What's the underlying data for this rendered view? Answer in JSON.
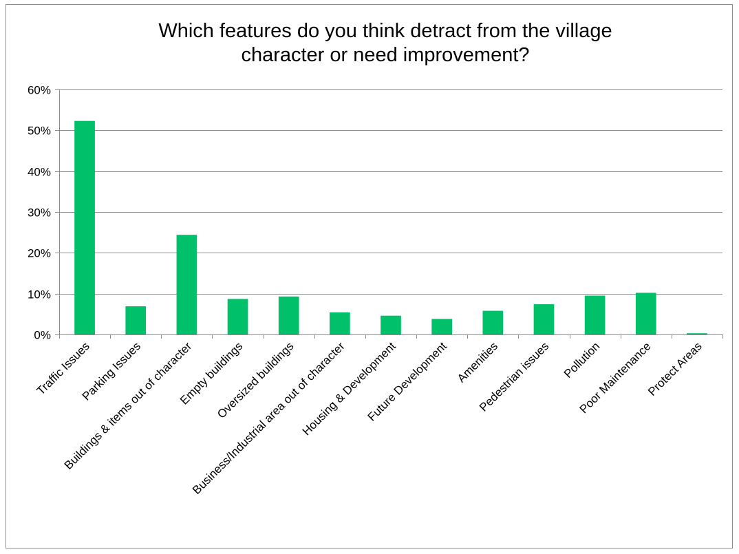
{
  "chart_data": {
    "type": "bar",
    "title": "Which features do you think detract from the village\ncharacter or need improvement?",
    "xlabel": "",
    "ylabel": "",
    "ylim": [
      0,
      60
    ],
    "yticks": [
      "0%",
      "10%",
      "20%",
      "30%",
      "40%",
      "50%",
      "60%"
    ],
    "grid": true,
    "legend": "none",
    "bar_color": "#00c06a",
    "categories": [
      "Traffic Issues",
      "Parking Issues",
      "Buildings & items out of character",
      "Empty buildings",
      "Oversized buildings",
      "Business/Industrial area out of character",
      "Housing & Development",
      "Future Development",
      "Amenities",
      "Pedestrian issues",
      "Pollution",
      "Poor Maintenance",
      "Protect Areas"
    ],
    "values": [
      52.3,
      6.9,
      24.4,
      8.7,
      9.3,
      5.4,
      4.6,
      3.8,
      5.8,
      7.4,
      9.5,
      10.2,
      0.3
    ]
  }
}
